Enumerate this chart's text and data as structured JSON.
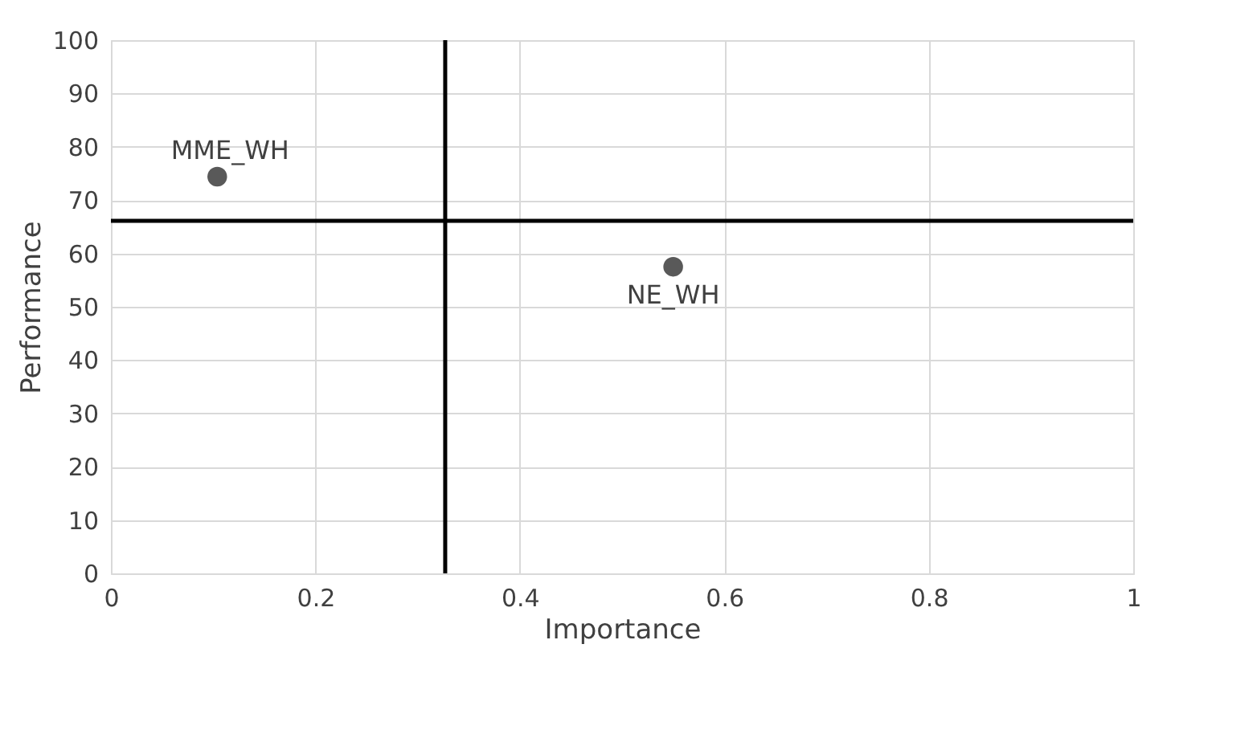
{
  "chart_data": {
    "type": "scatter",
    "xlabel": "Importance",
    "ylabel": "Performance",
    "x": [
      0.104,
      0.55
    ],
    "series": [
      {
        "color": "#595959",
        "values": [
          74.4,
          57.5
        ]
      }
    ],
    "xlim": [
      0,
      1
    ],
    "xticks": [
      0,
      0.2,
      0.4,
      0.6,
      0.8,
      1
    ],
    "ylim": [
      0,
      100
    ],
    "yticks": [
      0,
      10,
      20,
      30,
      40,
      50,
      60,
      70,
      80,
      90,
      100
    ],
    "grid": true,
    "marker": "circle",
    "ref_lines": [
      {
        "axis": "x",
        "value": 0.327,
        "color": "#000000"
      },
      {
        "axis": "y",
        "value": 66.1,
        "color": "#000000"
      }
    ],
    "annotations": [
      {
        "text": "MME_WH",
        "x": 0.104,
        "y": 74.4
      },
      {
        "text": "NE_WH",
        "x": 0.55,
        "y": 57.5
      }
    ]
  }
}
